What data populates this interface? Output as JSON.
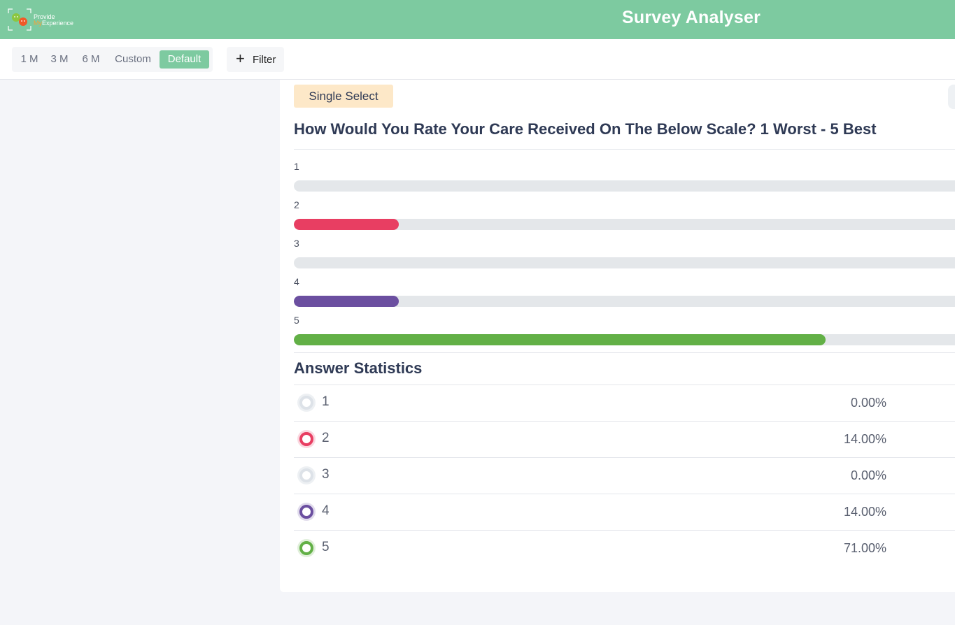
{
  "header": {
    "logo_line1": "Provide",
    "logo_my": "My",
    "logo_line2": "Experience",
    "title": "Survey Analyser"
  },
  "toolbar": {
    "ranges": [
      "1 M",
      "3 M",
      "6 M",
      "Custom",
      "Default"
    ],
    "active_range": "Default",
    "filter_label": "Filter",
    "filter_icon": "plus-icon"
  },
  "question": {
    "type_badge": "Single Select",
    "text": "How Would You Rate Your Care Received On The Below Scale? 1 Worst - 5 Best"
  },
  "chart_data": {
    "type": "bar",
    "orientation": "horizontal",
    "categories": [
      "1",
      "2",
      "3",
      "4",
      "5"
    ],
    "values": [
      0,
      14,
      0,
      14,
      71
    ],
    "unit": "%",
    "colors": [
      "#dde2e8",
      "#e83e62",
      "#dde2e8",
      "#6b4fa0",
      "#62b046"
    ]
  },
  "stats": {
    "title": "Answer Statistics",
    "rows": [
      {
        "label": "1",
        "percent": "0.00%",
        "color": "#dde2e8"
      },
      {
        "label": "2",
        "percent": "14.00%",
        "color": "#e83e62"
      },
      {
        "label": "3",
        "percent": "0.00%",
        "color": "#dde2e8"
      },
      {
        "label": "4",
        "percent": "14.00%",
        "color": "#6b4fa0"
      },
      {
        "label": "5",
        "percent": "71.00%",
        "color": "#62b046"
      }
    ]
  }
}
